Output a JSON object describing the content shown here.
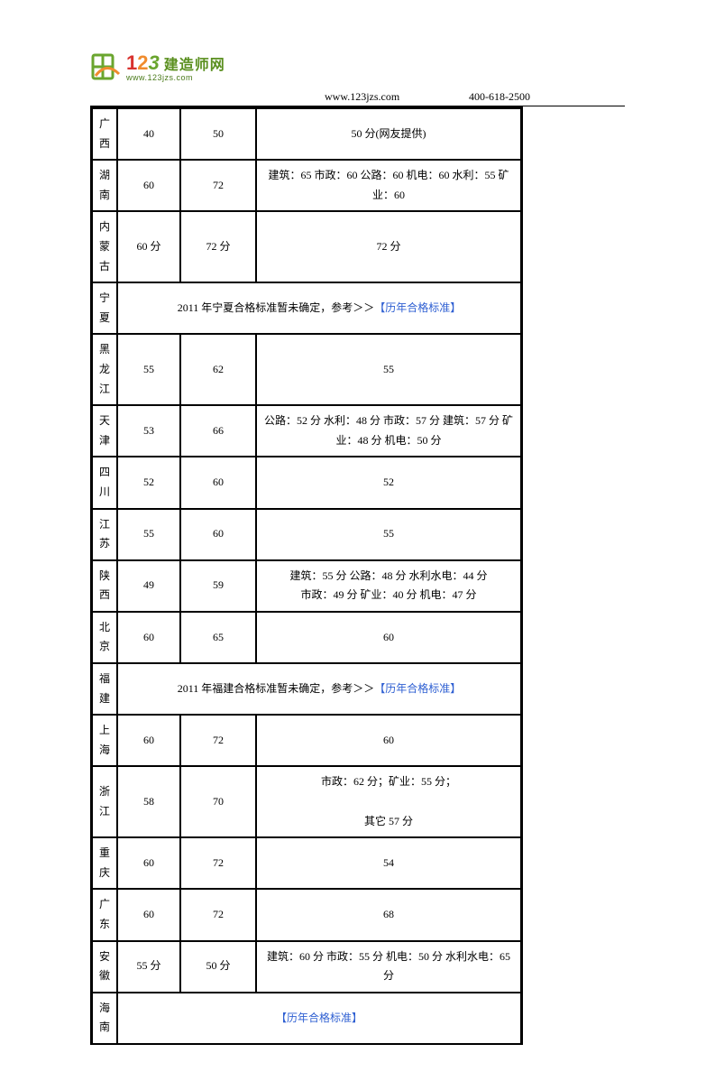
{
  "logo": {
    "digits": [
      "1",
      "2",
      "3"
    ],
    "cn": "建造师网",
    "url": "www.123jzs.com"
  },
  "header": {
    "url": "www.123jzs.com",
    "phone": "400-618-2500"
  },
  "link_text": "【历年合格标准】",
  "rows": [
    {
      "region": "广西",
      "a": "40",
      "b": "50",
      "c": "50 分(网友提供)"
    },
    {
      "region": "湖南",
      "a": "60",
      "b": "72",
      "c": "建筑：65 市政：60 公路：60 机电：60 水利：55 矿业：60"
    },
    {
      "region": "内蒙古",
      "a": "60 分",
      "b": "72 分",
      "c": "72 分"
    },
    {
      "region": "宁夏",
      "merged_prefix": "2011 年宁夏合格标准暂未确定，参考＞＞"
    },
    {
      "region": "黑龙江",
      "a": "55",
      "b": "62",
      "c": "55"
    },
    {
      "region": "天津",
      "a": "53",
      "b": "66",
      "c": "公路：52 分 水利：48 分 市政：57 分 建筑：57 分 矿业：48 分 机电：50 分"
    },
    {
      "region": "四川",
      "a": "52",
      "b": "60",
      "c": "52"
    },
    {
      "region": "江苏",
      "a": "55",
      "b": "60",
      "c": "55"
    },
    {
      "region": "陕西",
      "a": "49",
      "b": "59",
      "c_lines": [
        "建筑：55 分 公路：48 分 水利水电：44 分",
        "市政：49 分 矿业：40 分 机电：47 分"
      ]
    },
    {
      "region": "北京",
      "a": "60",
      "b": "65",
      "c": "60"
    },
    {
      "region": "福建",
      "merged_prefix": "2011 年福建合格标准暂未确定，参考＞＞"
    },
    {
      "region": "上海",
      "a": "60",
      "b": "72",
      "c": "60"
    },
    {
      "region": "浙江",
      "a": "58",
      "b": "70",
      "c_left_lines": [
        "市政：62 分；矿业：55 分；",
        "",
        "其它 57 分"
      ]
    },
    {
      "region": "重庆",
      "a": "60",
      "b": "72",
      "c": "54"
    },
    {
      "region": "广东",
      "a": "60",
      "b": "72",
      "c": "68"
    },
    {
      "region": "安徽",
      "a": "55 分",
      "b": "50 分",
      "c": "建筑：60 分 市政：55 分 机电：50 分 水利水电：65 分"
    },
    {
      "region": "海南",
      "merged_link_only": true
    }
  ]
}
